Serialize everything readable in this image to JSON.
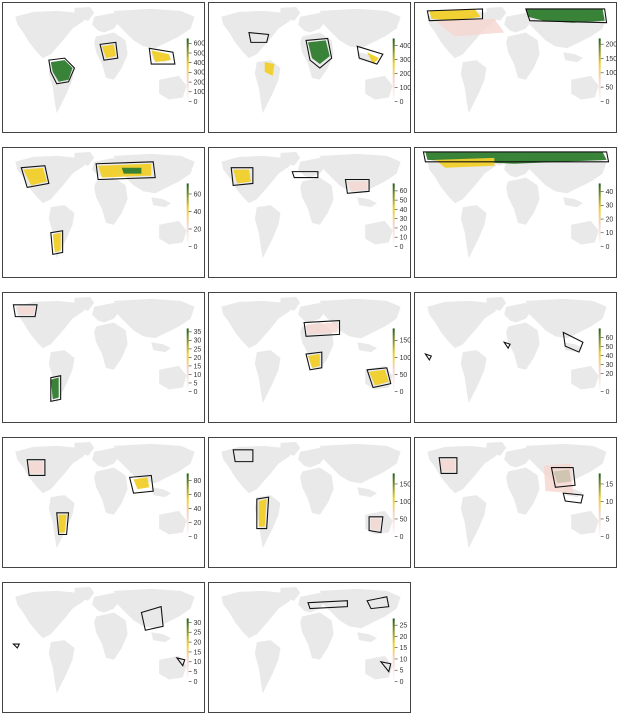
{
  "figure": {
    "panel_count": 14
  },
  "colors": {
    "land": "#e9e9e9",
    "boundary": "#111111",
    "low": "#f6d6cf",
    "mid": "#f1cf2a",
    "high": "#2f7d2f",
    "dark": "#1e5f1e"
  },
  "chart_data": [
    {
      "type": "heatmap",
      "panel": 1,
      "legend": {
        "ticks": [
          0,
          100,
          200,
          300,
          400,
          500,
          600
        ],
        "max": 650
      }
    },
    {
      "type": "heatmap",
      "panel": 2,
      "legend": {
        "ticks": [
          0,
          100,
          200,
          300,
          400
        ],
        "max": 450
      }
    },
    {
      "type": "heatmap",
      "panel": 3,
      "legend": {
        "ticks": [
          0,
          50,
          100,
          150,
          200
        ],
        "max": 220
      }
    },
    {
      "type": "heatmap",
      "panel": 4,
      "legend": {
        "ticks": [
          0,
          20,
          40,
          60
        ],
        "max": 72
      }
    },
    {
      "type": "heatmap",
      "panel": 5,
      "legend": {
        "ticks": [
          0,
          10,
          20,
          30,
          40,
          50,
          60
        ],
        "max": 68
      }
    },
    {
      "type": "heatmap",
      "panel": 6,
      "legend": {
        "ticks": [
          0,
          10,
          20,
          30,
          40
        ],
        "max": 46
      }
    },
    {
      "type": "heatmap",
      "panel": 7,
      "legend": {
        "ticks": [
          0,
          5,
          10,
          15,
          20,
          25,
          30,
          35
        ],
        "max": 37
      }
    },
    {
      "type": "heatmap",
      "panel": 8,
      "legend": {
        "ticks": [
          0,
          50,
          100,
          150
        ],
        "max": 185
      }
    },
    {
      "type": "heatmap",
      "panel": 9,
      "legend": {
        "ticks": [
          0,
          20,
          30,
          40,
          50,
          60
        ],
        "max": 70
      }
    },
    {
      "type": "heatmap",
      "panel": 10,
      "legend": {
        "ticks": [
          0,
          20,
          40,
          60,
          80
        ],
        "max": 90
      }
    },
    {
      "type": "heatmap",
      "panel": 11,
      "legend": {
        "ticks": [
          0,
          50,
          100,
          150
        ],
        "max": 180
      }
    },
    {
      "type": "heatmap",
      "panel": 12,
      "legend": {
        "ticks": [
          0,
          5,
          10,
          15
        ],
        "max": 18
      }
    },
    {
      "type": "heatmap",
      "panel": 13,
      "legend": {
        "ticks": [
          0,
          5,
          10,
          15,
          20,
          25,
          30
        ],
        "max": 32
      }
    },
    {
      "type": "heatmap",
      "panel": 14,
      "legend": {
        "ticks": [
          0,
          5,
          10,
          15,
          20,
          25
        ],
        "max": 28
      }
    }
  ]
}
